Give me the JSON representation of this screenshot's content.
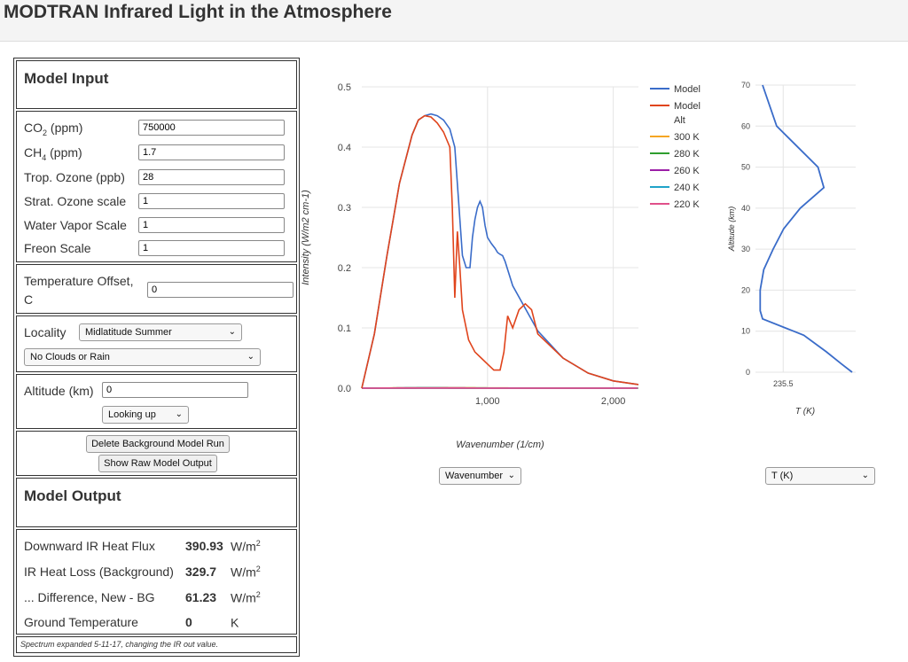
{
  "app": {
    "title": "MODTRAN Infrared Light in the Atmosphere"
  },
  "model_input": {
    "heading": "Model Input",
    "co2": {
      "label": "CO",
      "sub": "2",
      "unit": " (ppm)",
      "value": "750000"
    },
    "ch4": {
      "label": "CH",
      "sub": "4",
      "unit": " (ppm)",
      "value": "1.7"
    },
    "trop_ozone": {
      "label": "Trop. Ozone (ppb)",
      "value": "28"
    },
    "strat_ozone": {
      "label": "Strat. Ozone scale",
      "value": "1"
    },
    "water_vapor": {
      "label": "Water Vapor Scale",
      "value": "1"
    },
    "freon": {
      "label": "Freon Scale",
      "value": "1"
    },
    "temp_offset": {
      "label_line1": "Temperature Offset,",
      "label_line2": "C",
      "value": "0"
    },
    "locality": {
      "label": "Locality",
      "selected": "Midlatitude Summer"
    },
    "clouds": {
      "selected": "No Clouds or Rain"
    },
    "altitude": {
      "label": "Altitude (km)",
      "value": "0"
    },
    "looking": {
      "selected": "Looking up"
    },
    "delete_button": "Delete Background Model Run",
    "raw_button": "Show Raw Model Output"
  },
  "model_output": {
    "heading": "Model Output",
    "rows": [
      {
        "label": "Downward IR Heat Flux",
        "value": "390.93",
        "unit": "W/m",
        "sup": "2"
      },
      {
        "label": "IR Heat Loss (Background)",
        "value": "329.7",
        "unit": "W/m",
        "sup": "2"
      },
      {
        "label": "... Difference, New - BG",
        "value": "61.23",
        "unit": "W/m",
        "sup": "2"
      },
      {
        "label": "Ground Temperature",
        "value": "0",
        "unit": "K",
        "sup": ""
      }
    ],
    "note": "Spectrum expanded 5-11-17, changing the IR out value."
  },
  "spectrum_select": "Wavenumber",
  "profile_select": "T (K)",
  "colors": {
    "model": "#3a6cc9",
    "model_alt": "#e0441c",
    "k300": "#f5a623",
    "k280": "#2e9e2e",
    "k260": "#9c1fa8",
    "k240": "#1fa3c9",
    "k220": "#e0508a"
  },
  "chart_data": [
    {
      "type": "line",
      "xlabel": "Wavenumber (1/cm)",
      "ylabel": "Intensity (W/m2 cm-1)",
      "xlim": [
        0,
        2200
      ],
      "ylim": [
        0,
        0.5
      ],
      "xticks": [
        1000,
        2000
      ],
      "xtick_labels": [
        "1,000",
        "2,000"
      ],
      "yticks": [
        0,
        0.1,
        0.2,
        0.3,
        0.4,
        0.5
      ],
      "ytick_labels": [
        "0.0",
        "0.1",
        "0.2",
        "0.3",
        "0.4",
        "0.5"
      ],
      "legend": [
        "Model",
        "Model Alt",
        "300 K",
        "280 K",
        "260 K",
        "240 K",
        "220 K"
      ],
      "legend_lines": [
        [
          "Model"
        ],
        [
          "Model",
          "Alt"
        ],
        [
          "300 K"
        ],
        [
          "280 K"
        ],
        [
          "260 K"
        ],
        [
          "240 K"
        ],
        [
          "220 K"
        ]
      ],
      "legend_position": "right",
      "planck_temperatures": [
        300,
        280,
        260,
        240,
        220
      ],
      "series": [
        {
          "name": "Model",
          "x": [
            0,
            100,
            200,
            300,
            400,
            450,
            500,
            550,
            600,
            650,
            700,
            740,
            770,
            800,
            830,
            860,
            880,
            900,
            920,
            940,
            960,
            980,
            1000,
            1030,
            1060,
            1080,
            1100,
            1120,
            1140,
            1200,
            1400,
            1600,
            1800,
            2000,
            2200
          ],
          "y": [
            0,
            0.09,
            0.22,
            0.34,
            0.42,
            0.445,
            0.452,
            0.455,
            0.452,
            0.445,
            0.43,
            0.4,
            0.31,
            0.22,
            0.2,
            0.2,
            0.25,
            0.28,
            0.3,
            0.31,
            0.3,
            0.27,
            0.25,
            0.24,
            0.232,
            0.225,
            0.222,
            0.22,
            0.21,
            0.17,
            0.095,
            0.05,
            0.025,
            0.012,
            0.006
          ]
        },
        {
          "name": "Model Alt",
          "x": [
            0,
            100,
            200,
            300,
            400,
            450,
            500,
            550,
            600,
            650,
            700,
            720,
            740,
            760,
            780,
            800,
            850,
            900,
            950,
            1000,
            1050,
            1100,
            1130,
            1160,
            1200,
            1250,
            1300,
            1350,
            1400,
            1600,
            1800,
            2000,
            2200
          ],
          "y": [
            0,
            0.09,
            0.22,
            0.34,
            0.42,
            0.445,
            0.452,
            0.45,
            0.44,
            0.425,
            0.4,
            0.3,
            0.15,
            0.26,
            0.2,
            0.13,
            0.08,
            0.06,
            0.05,
            0.04,
            0.03,
            0.03,
            0.06,
            0.12,
            0.1,
            0.13,
            0.14,
            0.13,
            0.09,
            0.05,
            0.025,
            0.012,
            0.006
          ]
        }
      ]
    },
    {
      "type": "line",
      "xlabel": "T (K)",
      "ylabel": "Altitude (km)",
      "ylim": [
        0,
        70
      ],
      "yticks": [
        0,
        10,
        20,
        30,
        40,
        50,
        60,
        70
      ],
      "xticks": [
        235.5
      ],
      "xtick_labels": [
        "235.5"
      ],
      "series": [
        {
          "name": "",
          "x": [
            294,
            285,
            272,
            253,
            218,
            216,
            216,
            219,
            227,
            236,
            250,
            270,
            265,
            230,
            218
          ],
          "y": [
            0,
            2,
            5,
            9,
            13,
            15,
            20,
            25,
            30,
            35,
            40,
            45,
            50,
            60,
            70
          ]
        }
      ]
    }
  ]
}
